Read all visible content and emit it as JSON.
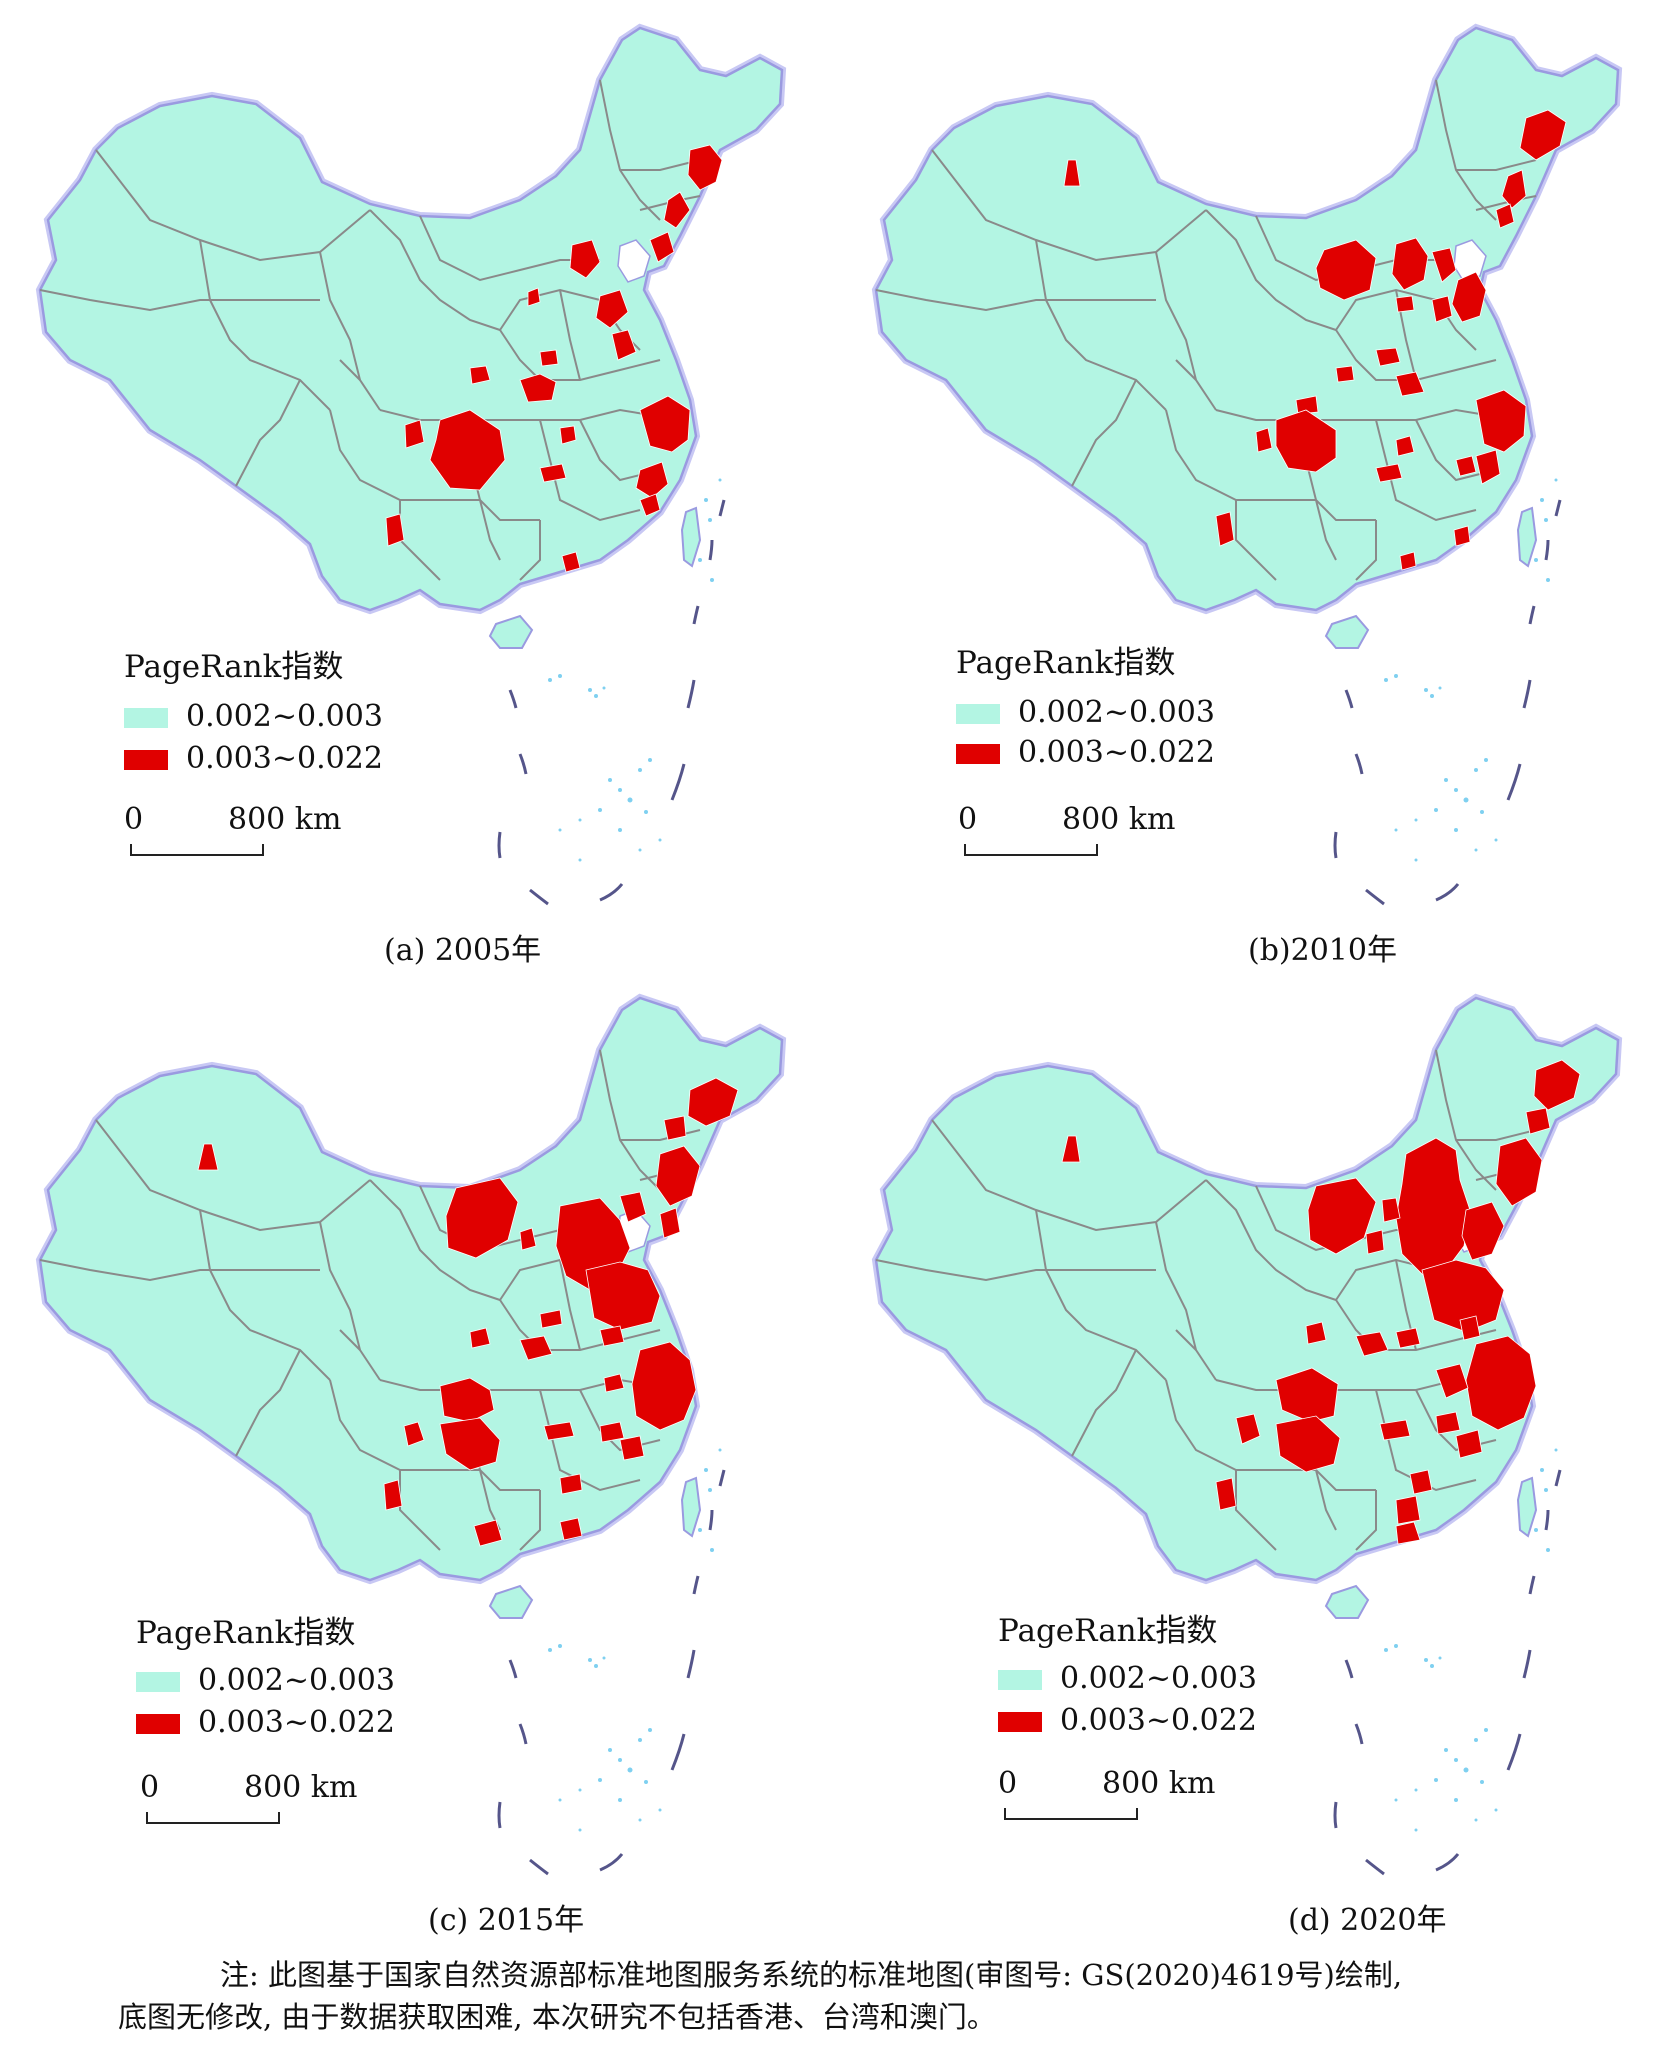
{
  "panels": [
    {
      "caption": "(a) 2005年",
      "legend_title": "PageRank指数",
      "legend": [
        "0.002~0.003",
        "0.003~0.022"
      ],
      "scale_zero": "0",
      "scale_distance": "800 km"
    },
    {
      "caption": "(b)2010年",
      "legend_title": "PageRank指数",
      "legend": [
        "0.002~0.003",
        "0.003~0.022"
      ],
      "scale_zero": "0",
      "scale_distance": "800 km"
    },
    {
      "caption": "(c) 2015年",
      "legend_title": "PageRank指数",
      "legend": [
        "0.002~0.003",
        "0.003~0.022"
      ],
      "scale_zero": "0",
      "scale_distance": "800 km"
    },
    {
      "caption": "(d) 2020年",
      "legend_title": "PageRank指数",
      "legend": [
        "0.002~0.003",
        "0.003~0.022"
      ],
      "scale_zero": "0",
      "scale_distance": "800 km"
    }
  ],
  "note": {
    "line1": "注: 此图基于国家自然资源部标准地图服务系统的标准地图(审图号: GS(2020)4619号)绘制,",
    "line2": "底图无修改, 由于数据获取困难, 本次研究不包括香港、台湾和澳门。"
  },
  "colors": {
    "low": "#b3f5e3",
    "high": "#e00000",
    "border": "#8a8a8a",
    "coast": "#a8a8e8",
    "water": "#7fd0f0"
  }
}
